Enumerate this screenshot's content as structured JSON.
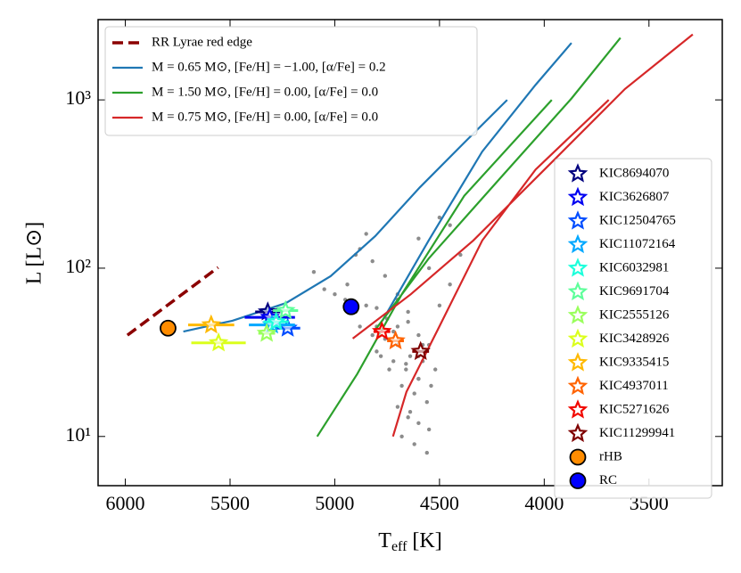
{
  "chart_data": {
    "type": "scatter",
    "xlabel": [
      "T",
      "eff",
      " [K]"
    ],
    "ylabel": "L [L⊙]",
    "xlim": [
      6130,
      3150
    ],
    "ylim": [
      5.1,
      3000
    ],
    "yscale": "log",
    "xticks": [
      6000,
      5500,
      5000,
      4500,
      4000,
      3500
    ],
    "yticks": [
      {
        "value": 10,
        "label": "10¹"
      },
      {
        "value": 100,
        "label": "10²"
      },
      {
        "value": 1000,
        "label": "10³"
      }
    ],
    "legend": "upper left",
    "marker_legend": "right",
    "series": [
      {
        "type": "scatter",
        "marker": "dot",
        "color": "#8c8c8c",
        "x": [
          4900,
          4850,
          4800,
          4750,
          4700,
          4650,
          4600,
          4550,
          4950,
          5000,
          4880,
          4820,
          4760,
          4700,
          4640,
          4580,
          4520,
          4780,
          4720,
          4660,
          4600,
          4540,
          4800,
          4740,
          4680,
          4620,
          4560,
          4500,
          4450,
          4700,
          4650,
          4600,
          4550,
          4680,
          4620,
          4560,
          4640,
          4600,
          4700,
          4760,
          4820,
          4880,
          4940,
          5050,
          5100,
          4900,
          4850,
          4600,
          4500,
          4450,
          4400,
          4550,
          4750,
          4700,
          4650,
          4800,
          4600,
          4660,
          4720,
          4580
        ],
        "values": [
          55,
          60,
          58,
          50,
          45,
          48,
          40,
          35,
          65,
          70,
          45,
          40,
          38,
          35,
          30,
          28,
          25,
          30,
          28,
          25,
          22,
          20,
          32,
          25,
          20,
          18,
          16,
          60,
          80,
          15,
          13,
          12,
          11,
          10,
          9,
          8,
          14,
          22,
          70,
          90,
          110,
          130,
          80,
          75,
          95,
          120,
          160,
          150,
          200,
          180,
          120,
          100,
          50,
          65,
          55,
          45,
          30,
          27,
          42,
          35
        ]
      },
      {
        "type": "line",
        "name": "RR Lyrae red edge",
        "color": "#8b0000",
        "linestyle": "dashed",
        "x": [
          5990,
          5557
        ],
        "values": [
          40,
          101
        ]
      },
      {
        "type": "line",
        "name": "M = 0.65 M⊙, [Fe/H] = −1.00, [α/Fe] = 0.2",
        "color": "#1f77b4",
        "linestyle": "solid",
        "x": [
          5723,
          5489,
          5233,
          5020,
          4807,
          4594,
          4382,
          4177,
          null,
          4773,
          4552,
          4296,
          4041,
          3870
        ],
        "values": [
          42,
          48.7,
          62,
          89.5,
          155,
          302,
          557,
          1000,
          null,
          48.7,
          146,
          493,
          1230,
          2180
        ]
      },
      {
        "type": "line",
        "name": "M = 1.50 M⊙, [Fe/H] = 0.00, [α/Fe] = 0.0",
        "color": "#2ca02c",
        "linestyle": "solid",
        "x": [
          5084,
          4893,
          4680,
          4382,
          3964,
          null,
          4807,
          4552,
          4211,
          3870,
          3636
        ],
        "values": [
          10,
          23.5,
          70,
          269,
          1000,
          null,
          43,
          114,
          342,
          1020,
          2340
        ]
      },
      {
        "type": "line",
        "name": "M = 0.75 M⊙, [Fe/H] = 0.00, [α/Fe] = 0.0",
        "color": "#d62728",
        "linestyle": "solid",
        "x": [
          4722,
          4658,
          4509,
          4296,
          4041,
          3692,
          null,
          4914,
          4637,
          4339,
          3956,
          3615,
          3291
        ],
        "values": [
          10,
          18.4,
          43,
          146,
          386,
          1000,
          null,
          38.2,
          70,
          146,
          436,
          1160,
          2450
        ]
      },
      {
        "type": "scatter",
        "marker": "star",
        "name": "KIC8694070",
        "color": "#00007f",
        "x": [
          5320
        ],
        "xerr": [
          60
        ],
        "values": [
          55
        ]
      },
      {
        "type": "scatter",
        "marker": "star",
        "name": "KIC3626807",
        "color": "#0000f1",
        "x": [
          5310
        ],
        "xerr": [
          120
        ],
        "values": [
          51
        ]
      },
      {
        "type": "scatter",
        "marker": "star",
        "name": "KIC12504765",
        "color": "#004dff",
        "x": [
          5225
        ],
        "xerr": [
          60
        ],
        "values": [
          44
        ]
      },
      {
        "type": "scatter",
        "marker": "star",
        "name": "KIC11072164",
        "color": "#00a8ff",
        "x": [
          5300
        ],
        "xerr": [
          110
        ],
        "values": [
          46
        ]
      },
      {
        "type": "scatter",
        "marker": "star",
        "name": "KIC6032981",
        "color": "#1cffdb",
        "x": [
          5280
        ],
        "xerr": [
          60
        ],
        "values": [
          48
        ]
      },
      {
        "type": "scatter",
        "marker": "star",
        "name": "KIC9691704",
        "color": "#5dff9a",
        "x": [
          5235
        ],
        "xerr": [
          60
        ],
        "values": [
          56
        ]
      },
      {
        "type": "scatter",
        "marker": "star",
        "name": "KIC2555126",
        "color": "#9aff5d",
        "x": [
          5325
        ],
        "xerr": [
          40
        ],
        "values": [
          41
        ]
      },
      {
        "type": "scatter",
        "marker": "star",
        "name": "KIC3428926",
        "color": "#dbff1c",
        "x": [
          5555
        ],
        "xerr": [
          130
        ],
        "values": [
          36
        ]
      },
      {
        "type": "scatter",
        "marker": "star",
        "name": "KIC9335415",
        "color": "#ffb900",
        "x": [
          5590
        ],
        "xerr": [
          110
        ],
        "values": [
          46
        ]
      },
      {
        "type": "scatter",
        "marker": "star",
        "name": "KIC4937011",
        "color": "#ff6300",
        "x": [
          4710
        ],
        "xerr": [
          40
        ],
        "values": [
          37
        ]
      },
      {
        "type": "scatter",
        "marker": "star",
        "name": "KIC5271626",
        "color": "#f10800",
        "x": [
          4775
        ],
        "xerr": [
          40
        ],
        "values": [
          42
        ]
      },
      {
        "type": "scatter",
        "marker": "star",
        "name": "KIC11299941",
        "color": "#7f0000",
        "x": [
          4590
        ],
        "xerr": [
          40
        ],
        "values": [
          32
        ]
      },
      {
        "type": "scatter",
        "marker": "circle",
        "name": "rHB",
        "color": "#ff8c00",
        "x": [
          5796
        ],
        "values": [
          44
        ]
      },
      {
        "type": "scatter",
        "marker": "circle",
        "name": "RC",
        "color": "#0000ff",
        "x": [
          4922
        ],
        "values": [
          59
        ]
      }
    ]
  }
}
